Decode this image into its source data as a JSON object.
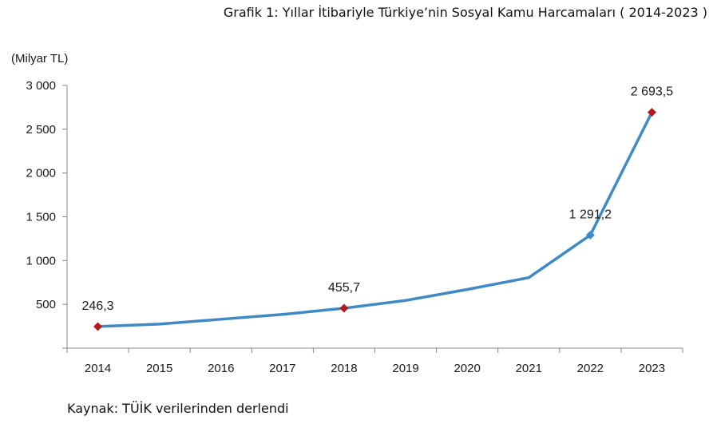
{
  "header": {
    "title": "Grafik 1: Yıllar İtibariyle Türkiye’nin Sosyal Kamu Harcamaları ( 2014-2023 )"
  },
  "footer": {
    "source": "Kaynak: TÜİK verilerinden derlendi"
  },
  "chart_data": {
    "type": "line",
    "title": "Grafik 1: Yıllar İtibariyle Türkiye’nin Sosyal Kamu Harcamaları ( 2014-2023 )",
    "xlabel": "",
    "ylabel": "(Milyar TL)",
    "ylim": [
      0,
      3000
    ],
    "y_ticks": [
      0,
      500,
      1000,
      1500,
      2000,
      2500,
      3000
    ],
    "y_tick_labels": [
      "",
      "500",
      "1 000",
      "1 500",
      "2 000",
      "2 500",
      "3 000"
    ],
    "categories": [
      "2014",
      "2015",
      "2016",
      "2017",
      "2018",
      "2019",
      "2020",
      "2021",
      "2022",
      "2023"
    ],
    "series": [
      {
        "values": [
          246.3,
          275,
          330,
          385,
          455.7,
          545,
          670,
          805,
          1291.2,
          2693.5
        ],
        "color": "#3f89c7"
      }
    ],
    "marked_points": [
      {
        "year": "2014",
        "label": "246,3",
        "marker": "diamond",
        "color": "#b5191c"
      },
      {
        "year": "2018",
        "label": "455,7",
        "marker": "diamond",
        "color": "#b5191c"
      },
      {
        "year": "2022",
        "label": "1 291,2",
        "marker": "diamond",
        "color": "#3f89c7"
      },
      {
        "year": "2023",
        "label": "2 693,5",
        "marker": "diamond",
        "color": "#b5191c"
      }
    ],
    "grid": false,
    "legend": "none"
  }
}
